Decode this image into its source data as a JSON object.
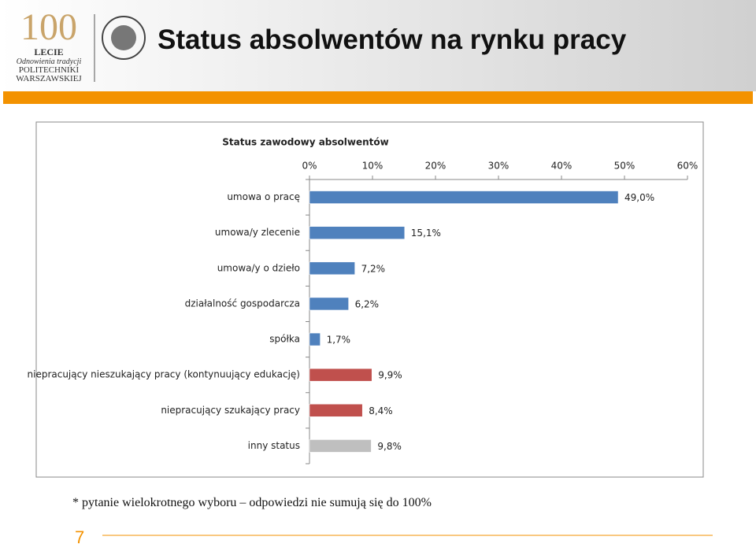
{
  "header": {
    "title": "Status absolwentów na rynku pracy",
    "logo": {
      "number": "100",
      "lines": [
        "LECIE",
        "Odnowienia tradycji",
        "POLITECHNIKI",
        "WARSZAWSKIEJ"
      ]
    }
  },
  "chart_data": {
    "type": "bar",
    "orientation": "horizontal",
    "title": "Status zawodowy absolwentów",
    "categories": [
      "umowa o pracę",
      "umowa/y zlecenie",
      "umowa/y o dzieło",
      "działalność gospodarcza",
      "spółka",
      "niepracujący nieszukający pracy (kontynuujący edukację)",
      "niepracujący szukający pracy",
      "inny status"
    ],
    "values": [
      49.0,
      15.1,
      7.2,
      6.2,
      1.7,
      9.9,
      8.4,
      9.8
    ],
    "value_labels": [
      "49,0%",
      "15,1%",
      "7,2%",
      "6,2%",
      "1,7%",
      "9,9%",
      "8,4%",
      "9,8%"
    ],
    "colors": [
      "#4f81bd",
      "#4f81bd",
      "#4f81bd",
      "#4f81bd",
      "#4f81bd",
      "#c0504d",
      "#c0504d",
      "#bfbfbf"
    ],
    "xlim": [
      0,
      60
    ],
    "xticks": [
      {
        "value": 0,
        "label": "0%"
      },
      {
        "value": 10,
        "label": "10%"
      },
      {
        "value": 20,
        "label": "20%"
      },
      {
        "value": 30,
        "label": "30%"
      },
      {
        "value": 40,
        "label": "40%"
      },
      {
        "value": 50,
        "label": "50%"
      },
      {
        "value": 60,
        "label": "60%"
      }
    ],
    "grid": false
  },
  "footnote": "* pytanie wielokrotnego wyboru – odpowiedzi nie sumują się do 100%",
  "page_number": "7"
}
